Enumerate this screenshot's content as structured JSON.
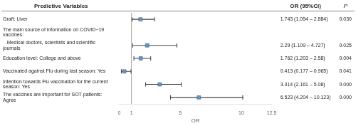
{
  "chart_data": {
    "type": "forest",
    "columns": [
      "Predictive Variables",
      "OR (95%CI)",
      "P"
    ],
    "categories": [
      "Graft: Liver",
      "The main source of information on COVID−19 vaccines:",
      "   Medical doctors, scientists and scientific journals",
      "Education level: College and above",
      "Vaccinated against Flu during last season: Yes",
      "Intention towards Flu vaccination for the current season: Yes",
      "The vaccines are important for SOT patients: Agree"
    ],
    "values": [
      1.743,
      null,
      2.29,
      1.762,
      0.413,
      3.314,
      6.523
    ],
    "ci_low": [
      1.054,
      null,
      1.109,
      1.203,
      0.177,
      2.161,
      4.204
    ],
    "ci_high": [
      2.884,
      null,
      4.727,
      2.58,
      0.965,
      5.08,
      10.123
    ],
    "value_labels": [
      "1.743 (1.054 – 2.884)",
      null,
      "2.29 (1.109 – 4.727)",
      "1.762 (1.203 – 2.58)",
      "0.413 (0.177 – 0.965)",
      "3.314 (2.161 – 5.08)",
      "6.523 (4.204 – 10.123)"
    ],
    "p_labels": [
      "0.030",
      null,
      "0.025",
      "0.004",
      "0.041",
      "0.000",
      "0.000"
    ],
    "xlabel": "OR",
    "xlim": [
      0,
      12.5
    ],
    "xticks": [
      0,
      1,
      5,
      10,
      12.5
    ],
    "reference_line": 1,
    "color": "#5b9bd5",
    "grid": false
  }
}
